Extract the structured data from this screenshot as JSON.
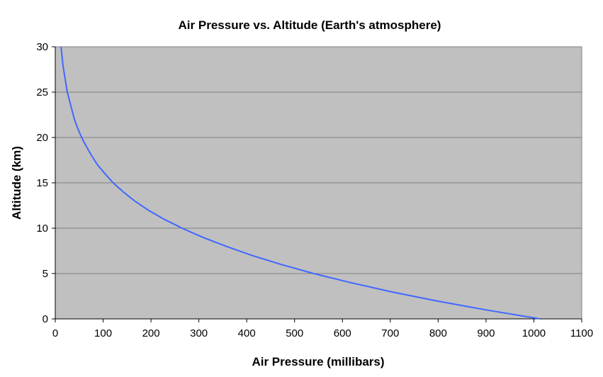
{
  "chart_data": {
    "type": "line",
    "title": "Air Pressure vs. Altitude (Earth's atmosphere)",
    "xlabel": "Air Pressure (millibars)",
    "ylabel": "Altitude (km)",
    "xlim": [
      0,
      1100
    ],
    "ylim": [
      0,
      30
    ],
    "x_ticks": [
      "0",
      "100",
      "200",
      "300",
      "400",
      "500",
      "600",
      "700",
      "800",
      "900",
      "1000",
      "1100"
    ],
    "y_ticks": [
      "0",
      "5",
      "10",
      "15",
      "20",
      "25",
      "30"
    ],
    "grid": "horizontal",
    "legend": "none",
    "colors": {
      "plot_area": "#c0c0c0",
      "line": "#3f68ff",
      "gridline": "#808080"
    },
    "series": [
      {
        "x": [
          1013,
          899,
          795,
          701,
          617,
          540,
          472,
          411,
          357,
          308,
          265,
          227,
          194,
          166,
          142,
          121,
          104,
          88,
          76,
          65,
          55,
          47,
          40,
          35,
          30,
          25,
          22,
          19,
          16,
          14,
          12
        ],
        "y": [
          0,
          1,
          2,
          3,
          4,
          5,
          6,
          7,
          8,
          9,
          10,
          11,
          12,
          13,
          14,
          15,
          16,
          17,
          18,
          19,
          20,
          21,
          22,
          23,
          24,
          25,
          26,
          27,
          28,
          29,
          30
        ]
      }
    ]
  }
}
